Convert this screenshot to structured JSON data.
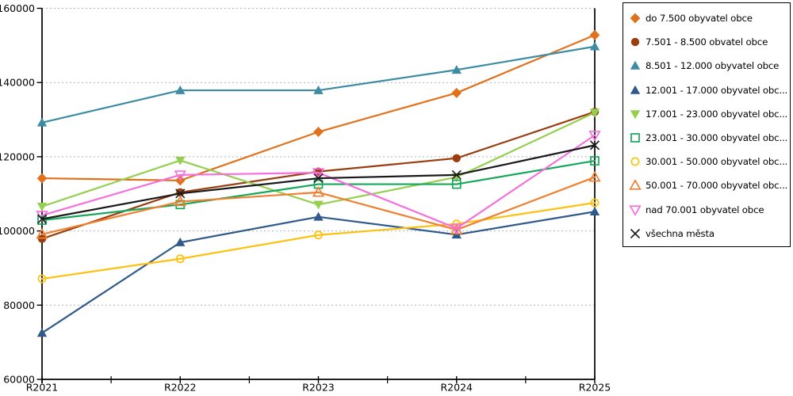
{
  "chart_data": {
    "type": "line",
    "title": "",
    "xlabel": "",
    "ylabel": "",
    "x_categories": [
      "R2021",
      "R2022",
      "R2023",
      "R2024",
      "R2025"
    ],
    "y_ticks": [
      60000,
      80000,
      100000,
      120000,
      140000,
      160000
    ],
    "ylim": [
      60000,
      160000
    ],
    "grid": "horizontal-dotted",
    "grid_color": "#b2b2b2",
    "axis_color": "#000000",
    "legend_position": "right-outside",
    "series": [
      {
        "label": "do 7.500 obyvatel obce",
        "marker": "diamond",
        "style": "filled",
        "color": "#e2711c",
        "values": [
          114200,
          113600,
          126700,
          137200,
          152800
        ]
      },
      {
        "label": "7.501 - 8.500 obvatel obce",
        "marker": "circle",
        "style": "filled",
        "color": "#9a3e10",
        "values": [
          97900,
          110400,
          116000,
          119600,
          132100
        ]
      },
      {
        "label": "8.501 - 12.000 obyvatel obce",
        "marker": "triangle-up",
        "style": "filled",
        "color": "#3d8ca4",
        "values": [
          129200,
          137900,
          137900,
          143400,
          149700
        ]
      },
      {
        "label": "12.001 - 17.000 obyvatel obc...",
        "marker": "triangle-up",
        "style": "filled",
        "color": "#305a8a",
        "values": [
          72500,
          96900,
          103800,
          99000,
          105200
        ]
      },
      {
        "label": "17.001 - 23.000 obyvatel obc...",
        "marker": "triangle-down",
        "style": "filled",
        "color": "#94cf50",
        "values": [
          106600,
          119000,
          107100,
          114500,
          131900
        ]
      },
      {
        "label": "23.001 - 30.000 obyvatel obc...",
        "marker": "square",
        "style": "open",
        "color": "#16a85a",
        "values": [
          102900,
          107100,
          112600,
          112600,
          118900
        ]
      },
      {
        "label": "30.001 - 50.000 obyvatel obc...",
        "marker": "circle",
        "style": "open",
        "color": "#fec110",
        "values": [
          87100,
          92500,
          98900,
          101900,
          107600
        ]
      },
      {
        "label": "50.001 - 70.000 obyvatel obc...",
        "marker": "triangle-up",
        "style": "open",
        "color": "#f08030",
        "values": [
          99100,
          107900,
          110400,
          100300,
          114500
        ]
      },
      {
        "label": "nad 70.001 obyvatel obce",
        "marker": "triangle-down",
        "style": "open",
        "color": "#f570dd",
        "values": [
          104200,
          115100,
          115700,
          100700,
          125800
        ]
      },
      {
        "label": "všechna města",
        "marker": "x",
        "style": "line",
        "color": "#1a1a1a",
        "values": [
          103200,
          110100,
          114200,
          115100,
          123100
        ]
      }
    ]
  }
}
